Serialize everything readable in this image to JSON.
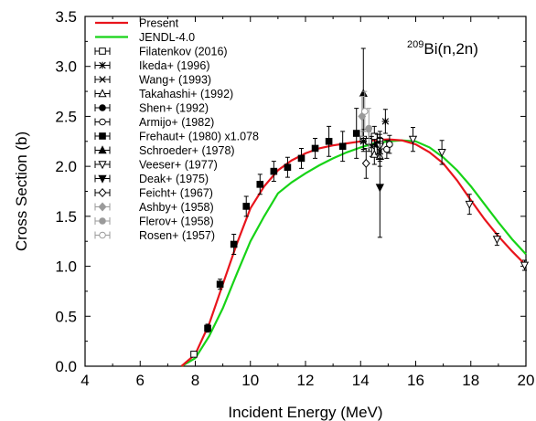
{
  "chart_data": {
    "type": "scatter",
    "title": "",
    "xlabel": "Incident Energy (MeV)",
    "ylabel": "Cross Section (b)",
    "xlim": [
      4,
      20
    ],
    "ylim": [
      0,
      3.5
    ],
    "x_ticks": [
      4,
      6,
      8,
      10,
      12,
      14,
      16,
      18,
      20
    ],
    "y_ticks": [
      0.0,
      0.5,
      1.0,
      1.5,
      2.0,
      2.5,
      3.0,
      3.5
    ],
    "x_tick_labels": [
      "4",
      "6",
      "8",
      "10",
      "12",
      "14",
      "16",
      "18",
      "20"
    ],
    "y_tick_labels": [
      "0.0",
      "0.5",
      "1.0",
      "1.5",
      "2.0",
      "2.5",
      "3.0",
      "3.5"
    ],
    "annotation": {
      "sup": "209",
      "text": "Bi(n,2n)"
    },
    "legend_position": "top-left",
    "grid": false,
    "series": [
      {
        "name": "Present",
        "kind": "line",
        "color": "#e8141c",
        "x": [
          7.5,
          8.0,
          8.5,
          9.0,
          9.5,
          10.0,
          10.5,
          11.0,
          11.5,
          12.0,
          12.5,
          13.0,
          13.5,
          14.0,
          14.5,
          15.0,
          15.5,
          16.0,
          16.5,
          17.0,
          17.5,
          18.0,
          18.5,
          19.0,
          19.5,
          20.0
        ],
        "y": [
          0.0,
          0.12,
          0.42,
          0.82,
          1.22,
          1.58,
          1.8,
          1.96,
          2.06,
          2.13,
          2.18,
          2.21,
          2.23,
          2.25,
          2.26,
          2.27,
          2.26,
          2.22,
          2.14,
          2.03,
          1.86,
          1.66,
          1.47,
          1.3,
          1.15,
          1.01
        ]
      },
      {
        "name": "JENDL-4.0",
        "kind": "line",
        "color": "#17d317",
        "x": [
          7.5,
          8.0,
          8.5,
          9.0,
          9.5,
          10.0,
          10.5,
          11.0,
          11.5,
          12.0,
          12.5,
          13.0,
          13.5,
          14.0,
          14.5,
          15.0,
          15.5,
          16.0,
          16.5,
          17.0,
          17.5,
          18.0,
          18.5,
          19.0,
          19.5,
          20.0
        ],
        "y": [
          0.0,
          0.08,
          0.3,
          0.58,
          0.92,
          1.25,
          1.5,
          1.73,
          1.84,
          1.93,
          2.01,
          2.08,
          2.14,
          2.19,
          2.23,
          2.25,
          2.26,
          2.25,
          2.19,
          2.09,
          1.96,
          1.8,
          1.62,
          1.44,
          1.27,
          1.12
        ]
      },
      {
        "name": "Filatenkov (2016)",
        "marker": "square-open",
        "color": "#000000",
        "x": [
          14.1,
          14.3,
          14.5,
          14.7
        ],
        "y": [
          2.27,
          2.25,
          2.3,
          2.25
        ],
        "err": [
          0.1,
          0.1,
          0.1,
          0.1
        ]
      },
      {
        "name": "Ikeda+ (1996)",
        "marker": "asterisk",
        "color": "#000000",
        "x": [
          14.1,
          14.9
        ],
        "y": [
          2.25,
          2.45
        ],
        "err": [
          0.1,
          0.12
        ]
      },
      {
        "name": "Wang+ (1993)",
        "marker": "x",
        "color": "#000000",
        "x": [
          14.4,
          14.7
        ],
        "y": [
          2.2,
          2.15
        ],
        "err": [
          0.1,
          0.1
        ]
      },
      {
        "name": "Takahashi+ (1992)",
        "marker": "triangle-open",
        "color": "#000000",
        "x": [
          14.5,
          14.7
        ],
        "y": [
          2.12,
          2.1
        ],
        "err": [
          0.1,
          0.1
        ]
      },
      {
        "name": "Shen+ (1992)",
        "marker": "circle-filled",
        "color": "#000000",
        "x": [
          14.6
        ],
        "y": [
          2.22
        ],
        "err": [
          0.1
        ]
      },
      {
        "name": "Armijo+ (1982)",
        "marker": "circle-open",
        "color": "#000000",
        "x": [
          14.95,
          15.05
        ],
        "y": [
          2.17,
          2.22
        ],
        "err": [
          0.09,
          0.09
        ]
      },
      {
        "name": "Frehaut+ (1980) x1.078",
        "marker": "square-filled",
        "color": "#000000",
        "x": [
          8.45,
          8.9,
          9.4,
          9.85,
          10.35,
          10.85,
          11.35,
          11.85,
          12.35,
          12.85,
          13.35,
          13.85
        ],
        "y": [
          0.38,
          0.82,
          1.22,
          1.6,
          1.82,
          1.95,
          1.99,
          2.08,
          2.18,
          2.25,
          2.2,
          2.33
        ],
        "err": [
          0.04,
          0.05,
          0.1,
          0.1,
          0.1,
          0.1,
          0.1,
          0.1,
          0.1,
          0.15,
          0.15,
          0.25
        ]
      },
      {
        "name": "Schroeder+ (1978)",
        "marker": "triangle-filled",
        "color": "#000000",
        "x": [
          14.1
        ],
        "y": [
          2.73
        ],
        "err": [
          0.45
        ]
      },
      {
        "name": "Veeser+ (1977)",
        "marker": "triangle-down-open",
        "color": "#000000",
        "x": [
          14.7,
          15.9,
          16.95,
          17.95,
          18.95,
          19.95
        ],
        "y": [
          2.2,
          2.27,
          2.14,
          1.62,
          1.27,
          1.01
        ],
        "err": [
          0.12,
          0.12,
          0.12,
          0.1,
          0.06,
          0.05
        ]
      },
      {
        "name": "Deak+ (1975)",
        "marker": "triangle-down-filled",
        "color": "#000000",
        "x": [
          14.7
        ],
        "y": [
          1.79
        ],
        "err": [
          0.5
        ]
      },
      {
        "name": "Feicht+ (1967)",
        "marker": "diamond-open",
        "color": "#000000",
        "x": [
          14.2
        ],
        "y": [
          2.03
        ],
        "err": [
          0.15
        ]
      },
      {
        "name": "Ashby+ (1958)",
        "marker": "diamond-filled-gray",
        "color": "#9a9a9a",
        "x": [
          14.05
        ],
        "y": [
          2.5
        ],
        "err": [
          0.2
        ]
      },
      {
        "name": "Flerov+ (1958)",
        "marker": "circle-filled-gray",
        "color": "#9a9a9a",
        "x": [
          14.3
        ],
        "y": [
          2.38
        ],
        "err": [
          0.2
        ]
      },
      {
        "name": "Rosen+ (1957)",
        "marker": "circle-open-gray",
        "color": "#9a9a9a",
        "x": [
          14.15
        ],
        "y": [
          2.55
        ],
        "err": [
          0.2
        ]
      }
    ],
    "extra_points": [
      {
        "series": "Frehaut+ (1980) x1.078",
        "x": 7.95,
        "y": 0.12,
        "err": 0.02,
        "marker": "square-open"
      }
    ]
  }
}
